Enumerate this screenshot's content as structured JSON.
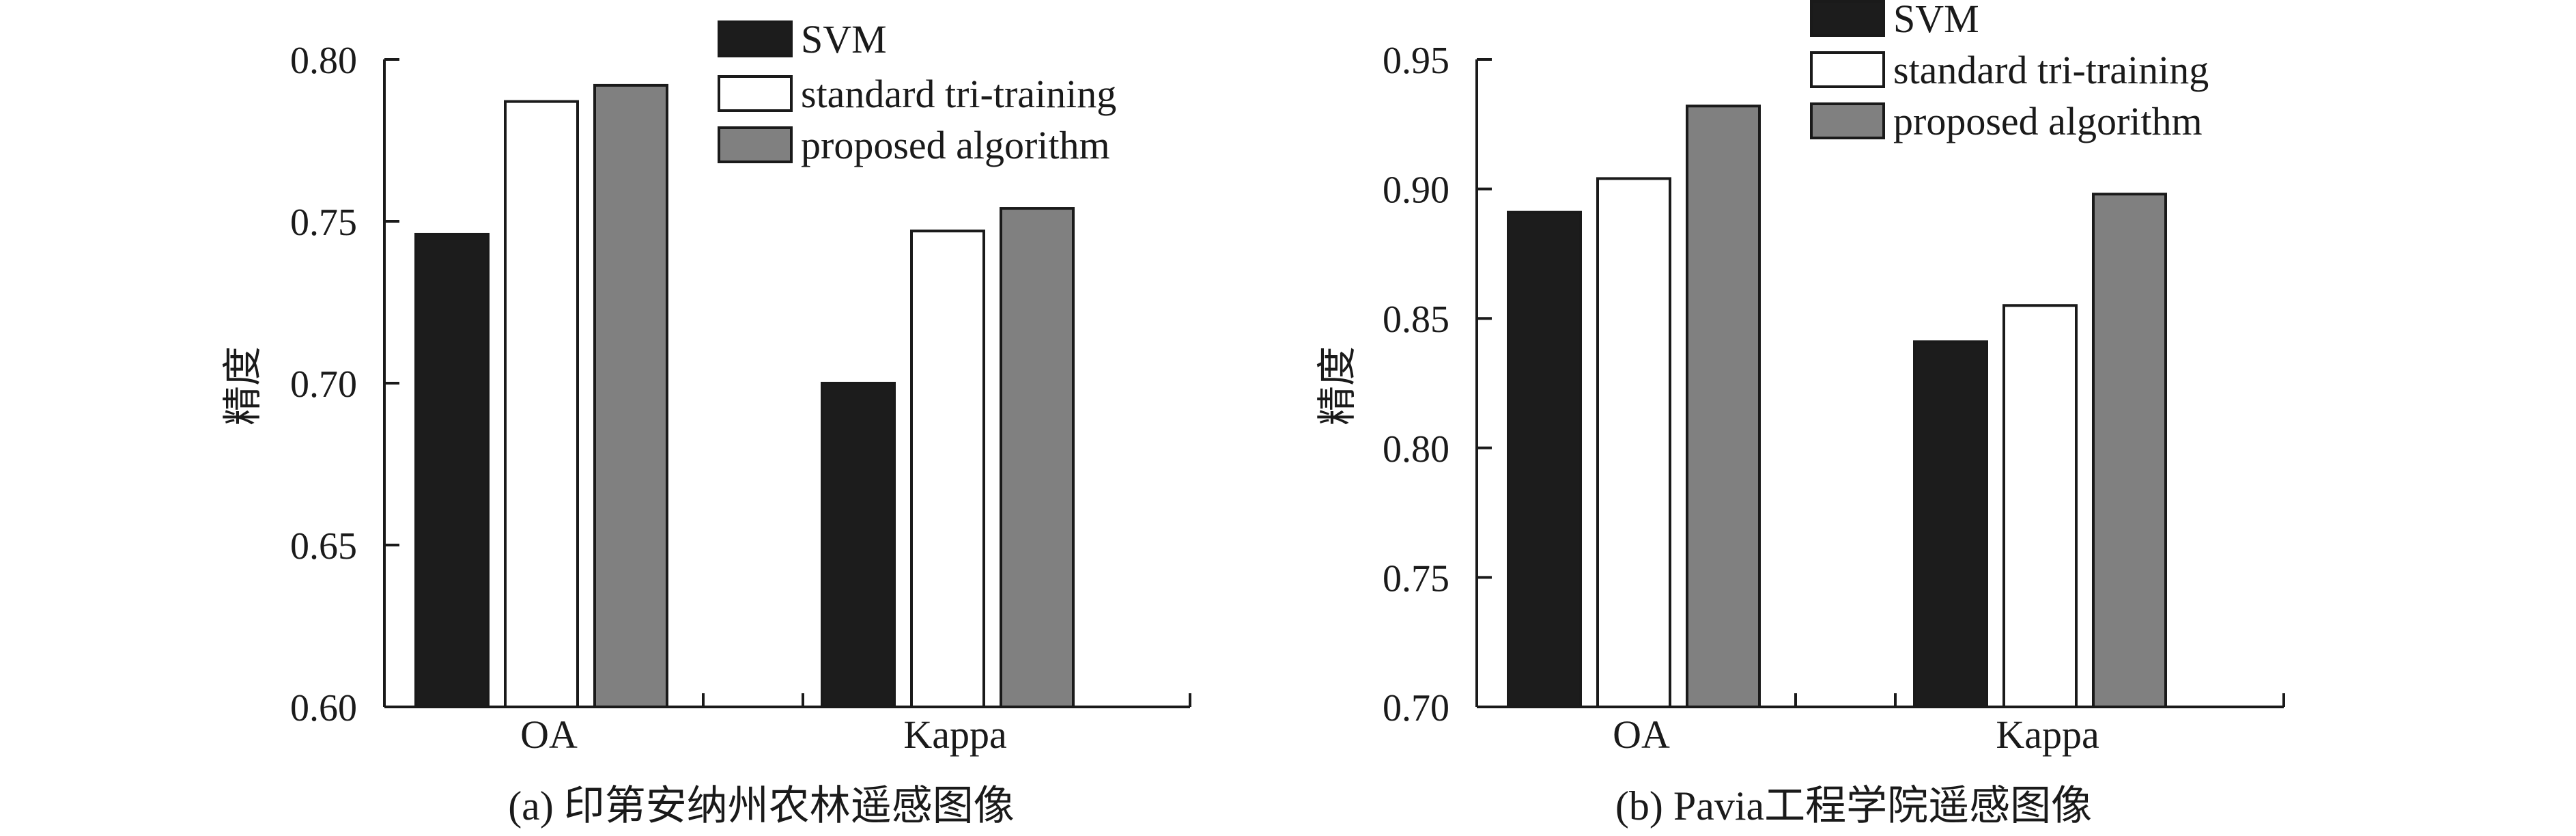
{
  "colors": {
    "svm": "#1c1c1c",
    "standard": "#ffffff",
    "proposed": "#808080",
    "axis": "#1a1a1a"
  },
  "chart_data": [
    {
      "type": "bar",
      "caption": "(a) 印第安纳州农林遥感图像",
      "ylabel": "精度",
      "categories": [
        "OA",
        "Kappa"
      ],
      "ylim": [
        0.6,
        0.8
      ],
      "yticks": [
        "0.60",
        "0.65",
        "0.70",
        "0.75",
        "0.80"
      ],
      "series": [
        {
          "name": "SVM",
          "values": [
            0.746,
            0.7
          ]
        },
        {
          "name": "standard tri-training",
          "values": [
            0.787,
            0.747
          ]
        },
        {
          "name": "proposed algorithm",
          "values": [
            0.792,
            0.754
          ]
        }
      ],
      "legend": "top-right",
      "grid": false
    },
    {
      "type": "bar",
      "caption": "(b) Pavia工程学院遥感图像",
      "ylabel": "精度",
      "categories": [
        "OA",
        "Kappa"
      ],
      "ylim": [
        0.7,
        0.95
      ],
      "yticks": [
        "0.70",
        "0.75",
        "0.80",
        "0.85",
        "0.90",
        "0.95"
      ],
      "series": [
        {
          "name": "SVM",
          "values": [
            0.891,
            0.841
          ]
        },
        {
          "name": "standard tri-training",
          "values": [
            0.904,
            0.855
          ]
        },
        {
          "name": "proposed algorithm",
          "values": [
            0.932,
            0.898
          ]
        }
      ],
      "legend": "top-right",
      "grid": false
    }
  ]
}
